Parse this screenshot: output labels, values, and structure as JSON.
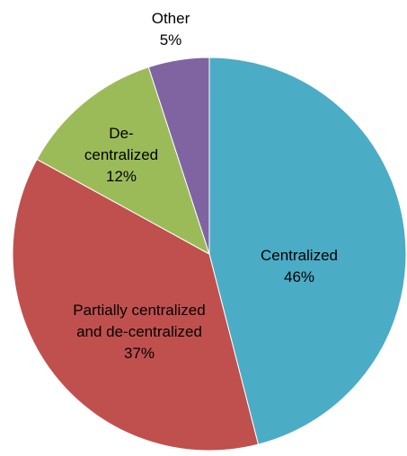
{
  "chart_data": {
    "type": "pie",
    "categories": [
      "Centralized",
      "Partially centralized and de-centralized",
      "De-centralized",
      "Other"
    ],
    "values": [
      46,
      37,
      12,
      5
    ],
    "value_labels": [
      "46%",
      "37%",
      "12%",
      "5%"
    ],
    "colors": [
      "#4bacc6",
      "#c0504d",
      "#9bbb59",
      "#8064a2"
    ]
  }
}
